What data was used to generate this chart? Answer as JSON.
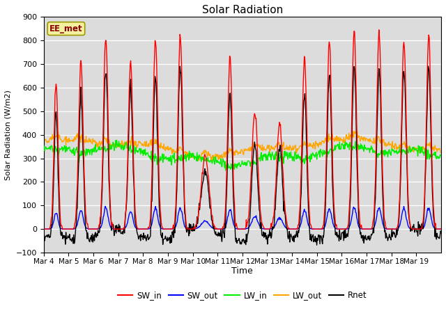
{
  "title": "Solar Radiation",
  "ylabel": "Solar Radiation (W/m2)",
  "xlabel": "Time",
  "ylim": [
    -100,
    900
  ],
  "yticks": [
    -100,
    0,
    100,
    200,
    300,
    400,
    500,
    600,
    700,
    800,
    900
  ],
  "n_days": 16,
  "dt_hours": 0.5,
  "label_text": "EE_met",
  "bg_color": "#dcdcdc",
  "series": {
    "SW_in": {
      "color": "red",
      "lw": 1.0
    },
    "SW_out": {
      "color": "blue",
      "lw": 1.0
    },
    "LW_in": {
      "color": "#00ee00",
      "lw": 1.0
    },
    "LW_out": {
      "color": "orange",
      "lw": 1.0
    },
    "Rnet": {
      "color": "black",
      "lw": 1.0
    }
  },
  "x_tick_labels": [
    "Mar 4",
    "Mar 5",
    "Mar 6",
    "Mar 7",
    "Mar 8",
    "Mar 9",
    "Mar 10",
    "Mar 11",
    "Mar 12",
    "Mar 13",
    "Mar 14",
    "Mar 15",
    "Mar 16",
    "Mar 17",
    "Mar 18",
    "Mar 19"
  ],
  "x_tick_positions": [
    0,
    1,
    2,
    3,
    4,
    5,
    6,
    7,
    8,
    9,
    10,
    11,
    12,
    13,
    14,
    15
  ],
  "sw_in_peaks": [
    620,
    710,
    820,
    700,
    800,
    820,
    310,
    730,
    490,
    450,
    730,
    800,
    845,
    840,
    800,
    820
  ],
  "sw_peak_widths": [
    0.08,
    0.09,
    0.09,
    0.09,
    0.09,
    0.09,
    0.15,
    0.09,
    0.12,
    0.12,
    0.09,
    0.09,
    0.09,
    0.09,
    0.09,
    0.09
  ],
  "lw_in_base": 315,
  "lw_out_base": 345,
  "lw_amplitude": 30,
  "sw_out_ratio": 0.11,
  "night_rnet": -50
}
